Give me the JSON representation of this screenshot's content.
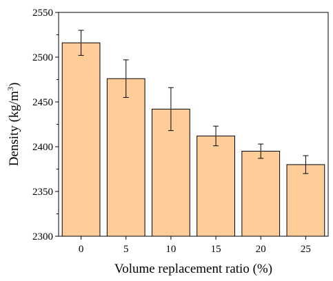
{
  "chart_data": {
    "type": "bar",
    "categories": [
      "0",
      "5",
      "10",
      "15",
      "20",
      "25"
    ],
    "values": [
      2516,
      2476,
      2442,
      2412,
      2395,
      2380
    ],
    "errors": [
      14,
      21,
      24,
      11,
      8,
      10
    ],
    "xlabel": "Volume replacement ratio (%)",
    "ylabel_main": "Density (kg/m",
    "ylabel_sup": "3",
    "ylabel_end": ")",
    "ylim": [
      2300,
      2550
    ],
    "yticks": [
      "2300",
      "2350",
      "2400",
      "2450",
      "2500",
      "2550"
    ],
    "grid": false,
    "bar_color": "#FDCC97",
    "bar_edge_color": "#000000"
  }
}
